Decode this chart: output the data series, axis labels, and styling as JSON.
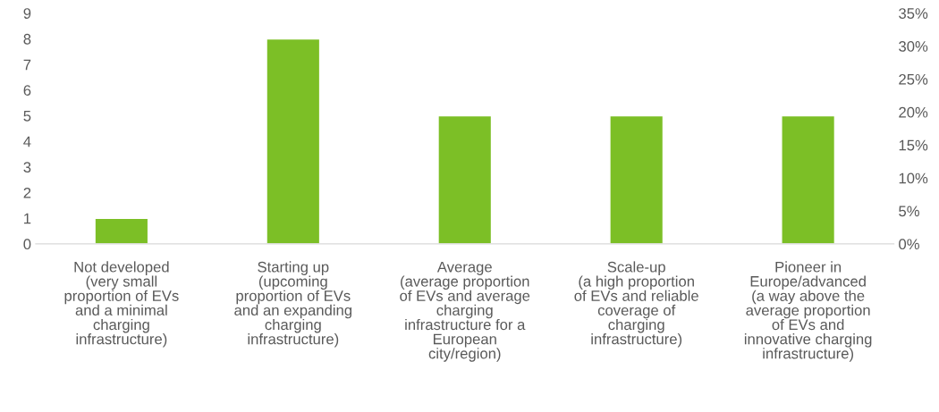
{
  "chart_data": {
    "type": "bar",
    "categories": [
      "Not developed\n(very small\nproportion of EVs\nand a minimal\ncharging\ninfrastructure)",
      "Starting up\n(upcoming\nproportion of EVs\nand an expanding\ncharging\ninfrastructure)",
      "Average\n(average proportion\nof EVs and average\ncharging\ninfrastructure for a\nEuropean\ncity/region)",
      "Scale-up\n(a high proportion\nof EVs and reliable\ncoverage of\ncharging\ninfrastructure)",
      "Pioneer in\nEurope/advanced\n(a way above the\naverage proportion\nof EVs and\ninnovative charging\ninfrastructure)"
    ],
    "values": [
      1,
      8,
      5,
      5,
      5
    ],
    "color": "#7cbf26",
    "ylim": [
      0,
      9
    ],
    "yticks": [
      0,
      1,
      2,
      3,
      4,
      5,
      6,
      7,
      8,
      9
    ],
    "y2lim": [
      0,
      35
    ],
    "y2ticks": [
      {
        "value": 0,
        "label": "0%"
      },
      {
        "value": 5,
        "label": "5%"
      },
      {
        "value": 10,
        "label": "10%"
      },
      {
        "value": 15,
        "label": "15%"
      },
      {
        "value": 20,
        "label": "20%"
      },
      {
        "value": 25,
        "label": "25%"
      },
      {
        "value": 30,
        "label": "30%"
      },
      {
        "value": 35,
        "label": "35%"
      }
    ],
    "grid": false,
    "legend": false
  }
}
